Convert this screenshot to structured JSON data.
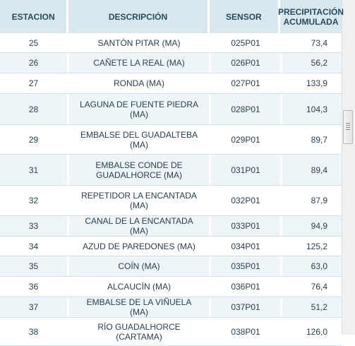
{
  "table": {
    "headers": [
      "ESTACION",
      "DESCRIPCIÓN",
      "SENSOR",
      "PRECIPITACIÓN ACUMULADA"
    ],
    "rows": [
      {
        "station": "25",
        "description": "SANTÓN PITAR (MA)",
        "sensor": "025P01",
        "value": "73,4"
      },
      {
        "station": "26",
        "description": "CAÑETE LA REAL (MA)",
        "sensor": "026P01",
        "value": "56,2"
      },
      {
        "station": "27",
        "description": "RONDA (MA)",
        "sensor": "027P01",
        "value": "133,9"
      },
      {
        "station": "28",
        "description": "LAGUNA DE FUENTE PIEDRA (MA)",
        "sensor": "028P01",
        "value": "104,3"
      },
      {
        "station": "29",
        "description": "EMBALSE DEL GUADALTEBA (MA)",
        "sensor": "029P01",
        "value": "89,7"
      },
      {
        "station": "31",
        "description": "EMBALSE CONDE DE GUADALHORCE (MA)",
        "sensor": "031P01",
        "value": "89,4"
      },
      {
        "station": "32",
        "description": "REPETIDOR LA ENCANTADA (MA)",
        "sensor": "032P01",
        "value": "87,9"
      },
      {
        "station": "33",
        "description": "CANAL DE LA ENCANTADA (MA)",
        "sensor": "033P01",
        "value": "94,9"
      },
      {
        "station": "34",
        "description": "AZUD DE PAREDONES (MA)",
        "sensor": "034P01",
        "value": "125,2"
      },
      {
        "station": "35",
        "description": "COÍN (MA)",
        "sensor": "035P01",
        "value": "63,0"
      },
      {
        "station": "36",
        "description": "ALCAUCÍN (MA)",
        "sensor": "036P01",
        "value": "76,4"
      },
      {
        "station": "37",
        "description": "EMBALSE DE LA VIÑUELA (MA)",
        "sensor": "037P01",
        "value": "51,2"
      },
      {
        "station": "38",
        "description": "RÍO GUADALHORCE (CARTAMA)",
        "sensor": "038P01",
        "value": "126,0"
      }
    ]
  },
  "scrollbar": {
    "position_fraction": 0.33
  }
}
